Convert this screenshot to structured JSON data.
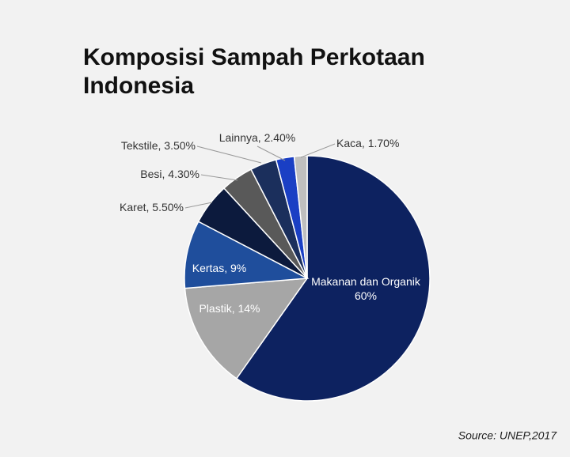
{
  "chart_data": {
    "type": "pie",
    "title": "Komposisi Sampah Perkotaan",
    "title_line2": "Indonesia",
    "source": "Source: UNEP,2017",
    "label_separator": ", ",
    "categories": [
      "Makanan dan Organik",
      "Plastik",
      "Kertas",
      "Karet",
      "Besi",
      "Tekstile",
      "Lainnya",
      "Kaca"
    ],
    "values": [
      60,
      14,
      9,
      5.5,
      4.3,
      3.5,
      2.4,
      1.7
    ],
    "value_labels": [
      "60%",
      "14%",
      "9%",
      "5.50%",
      "4.30%",
      "3.50%",
      "2.40%",
      "1.70%"
    ],
    "colors": [
      "#0d2260",
      "#a6a6a6",
      "#1f4e9c",
      "#0c1a3d",
      "#595959",
      "#1b2f5c",
      "#1a3fc4",
      "#bfbfbf"
    ]
  }
}
